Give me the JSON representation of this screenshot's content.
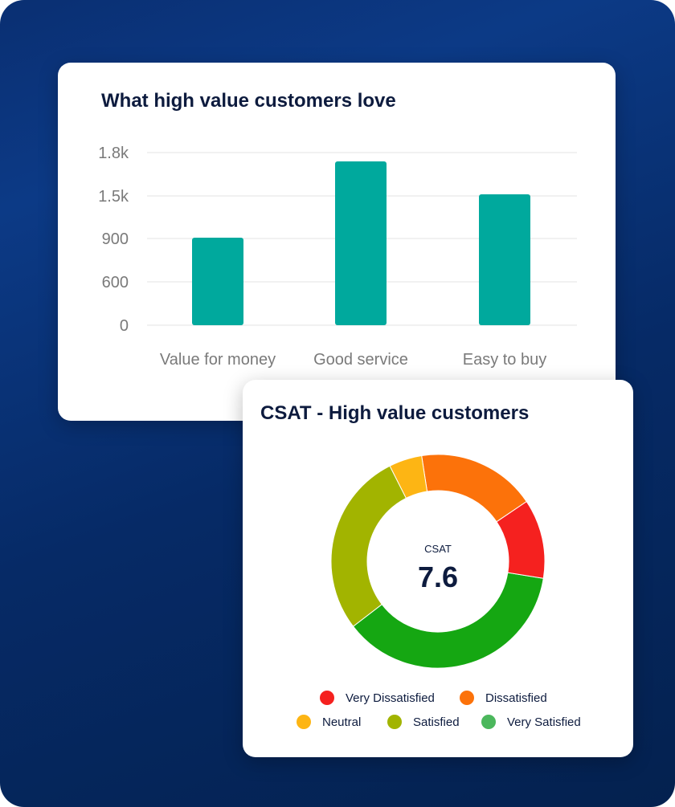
{
  "bar_card": {
    "title": "What high value customers love"
  },
  "donut_card": {
    "title": "CSAT - High value customers",
    "center_label": "CSAT",
    "center_value": "7.6"
  },
  "colors": {
    "bar": "#00a99d",
    "grid": "#e3e3e3",
    "axis_text": "#7a7a7a",
    "very_dissatisfied": "#f5211f",
    "dissatisfied": "#fc720a",
    "neutral": "#fdb514",
    "satisfied": "#a2b400",
    "very_satisfied": "#15a712",
    "very_satisfied_legend": "#4bb75c"
  },
  "chart_data": [
    {
      "type": "bar",
      "title": "What high value customers love",
      "categories": [
        "Value for money",
        "Good service",
        "Easy to buy"
      ],
      "values": [
        900,
        1750,
        1500
      ],
      "y_ticks": [
        "0",
        "600",
        "900",
        "1.5k",
        "1.8k"
      ],
      "xlabel": "",
      "ylabel": "",
      "grid": true
    },
    {
      "type": "pie",
      "title": "CSAT - High value customers",
      "categories": [
        "Very Dissatisfied",
        "Dissatisfied",
        "Neutral",
        "Satisfied",
        "Very Satisfied"
      ],
      "values": [
        12,
        18,
        5,
        28,
        37
      ],
      "legend": [
        "Very Dissatisfied",
        "Dissatisfied",
        "Neutral",
        "Satisfied",
        "Very Satisfied"
      ]
    }
  ]
}
